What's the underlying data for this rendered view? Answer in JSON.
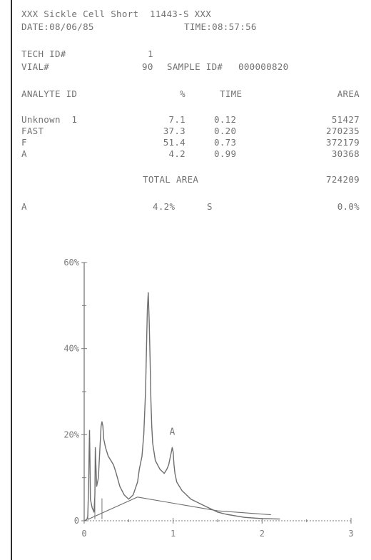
{
  "report": {
    "title": "XXX Sickle Cell Short  11443-S XXX",
    "date": "DATE:08/06/85",
    "time": "TIME:08:57:56",
    "tech_id_label": "TECH ID#",
    "tech_id_value": "1",
    "vial_label": "VIAL#",
    "vial_value": "90",
    "sample_label": "SAMPLE ID#",
    "sample_value": "000000820"
  },
  "table": {
    "headers": {
      "analyte": "ANALYTE ID",
      "pct": "%",
      "time": "TIME",
      "area": "AREA"
    },
    "rows": [
      {
        "analyte": "Unknown  1",
        "pct": "7.1",
        "time": "0.12",
        "area": "51427"
      },
      {
        "analyte": "FAST",
        "pct": "37.3",
        "time": "0.20",
        "area": "270235"
      },
      {
        "analyte": "F",
        "pct": "51.4",
        "time": "0.73",
        "area": "372179"
      },
      {
        "analyte": "A",
        "pct": "4.2",
        "time": "0.99",
        "area": "30368"
      }
    ],
    "total_label": "TOTAL AREA",
    "total_value": "724209"
  },
  "summary": {
    "name": "A",
    "pct": "4.2%",
    "s": "S",
    "value": "0.0%"
  },
  "chart_data": {
    "type": "line",
    "title": "",
    "xlabel": "",
    "ylabel": "",
    "x_ticks": [
      "0",
      "1",
      "2",
      "3"
    ],
    "y_ticks": [
      "0",
      "20%",
      "40%",
      "60%"
    ],
    "xlim": [
      0,
      3
    ],
    "ylim": [
      0,
      60
    ],
    "grid": false,
    "annotations": [
      {
        "text": "A",
        "x": 0.99,
        "y": 20
      }
    ],
    "series": [
      {
        "x": [
          0,
          0.03,
          0.04,
          0.05,
          0.055,
          0.06,
          0.065,
          0.07,
          0.09,
          0.11,
          0.12,
          0.125,
          0.13,
          0.14,
          0.16,
          0.18,
          0.19,
          0.2,
          0.21,
          0.22,
          0.24,
          0.27,
          0.3,
          0.33,
          0.36,
          0.4,
          0.45,
          0.5,
          0.55,
          0.6,
          0.62,
          0.65,
          0.67,
          0.69,
          0.7,
          0.71,
          0.72,
          0.73,
          0.74,
          0.75,
          0.76,
          0.77,
          0.8,
          0.85,
          0.9,
          0.93,
          0.95,
          0.96,
          0.97,
          0.98,
          0.99,
          1.0,
          1.01,
          1.02,
          1.04,
          1.1,
          1.2,
          1.3,
          1.4,
          1.5,
          1.6,
          1.8,
          2.0,
          2.2
        ],
        "y": [
          0,
          0.3,
          1,
          8,
          16,
          21,
          14,
          5,
          3,
          2,
          6,
          17,
          14,
          8,
          10,
          18,
          22,
          23,
          22,
          19,
          17,
          15,
          14,
          13,
          11,
          8,
          6,
          5,
          6,
          9,
          12,
          15,
          20,
          30,
          40,
          49,
          53,
          47,
          38,
          28,
          22,
          18,
          14,
          12,
          11,
          12,
          13,
          14,
          15,
          16,
          17,
          16,
          13,
          11,
          9,
          7,
          5,
          4,
          3,
          2,
          1.5,
          0.8,
          0.5,
          0.4
        ]
      },
      {
        "x": [
          0.04,
          0.6,
          1.5,
          2.1
        ],
        "y": [
          0.3,
          5.5,
          2.3,
          1.4
        ]
      }
    ]
  }
}
